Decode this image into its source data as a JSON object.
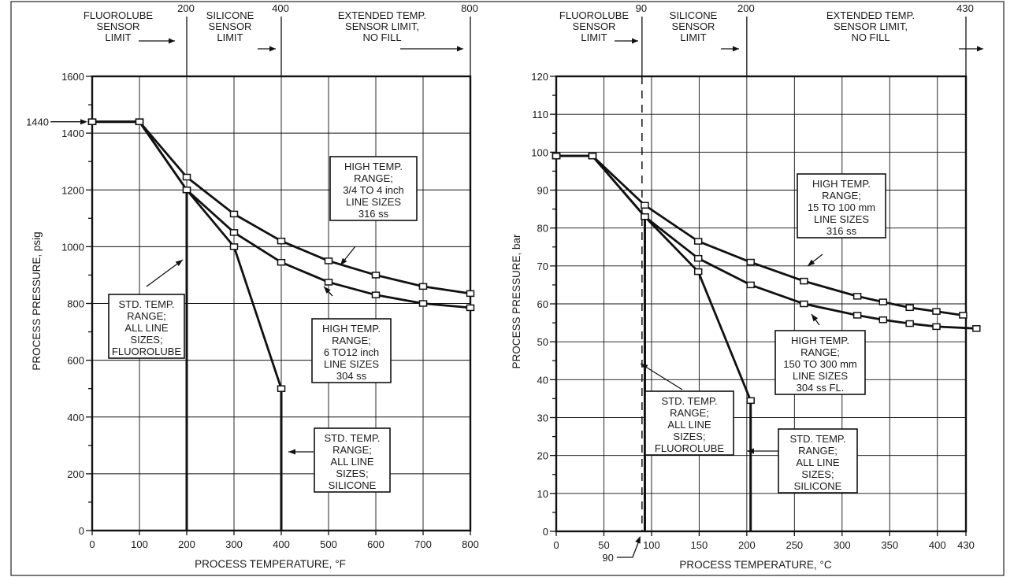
{
  "chart_data": [
    {
      "type": "line",
      "xlabel": "PROCESS TEMPERATURE, °F",
      "ylabel": "PROCESS PRESSURE, psig",
      "xlim": [
        0,
        800
      ],
      "ylim": [
        0,
        1600
      ],
      "x_ticks": [
        "0",
        "100",
        "200",
        "300",
        "400",
        "500",
        "600",
        "700",
        "800"
      ],
      "y_ticks": [
        "0",
        "200",
        "400",
        "600",
        "800",
        "1000",
        "1200",
        "1400",
        "1600"
      ],
      "top_ticks": [
        "200",
        "400",
        "800"
      ],
      "y_callout": "1440",
      "grid": true,
      "zones": [
        {
          "label": [
            "FLUOROLUBE",
            "SENSOR",
            "LIMIT"
          ]
        },
        {
          "label": [
            "SILICONE",
            "SENSOR",
            "LIMIT"
          ]
        },
        {
          "label": [
            "EXTENDED TEMP.",
            "SENSOR LIMIT,",
            "NO FILL"
          ]
        }
      ],
      "series": [
        {
          "x": [
            0,
            100,
            200,
            300,
            400,
            500,
            600,
            700,
            800
          ],
          "y": [
            1440,
            1440,
            1245,
            1115,
            1020,
            950,
            900,
            860,
            835
          ]
        },
        {
          "x": [
            0,
            100,
            200,
            300,
            400,
            500,
            600,
            700,
            800
          ],
          "y": [
            1440,
            1440,
            1200,
            1050,
            945,
            875,
            830,
            800,
            785
          ]
        },
        {
          "x": [
            0,
            100,
            200,
            300,
            400
          ],
          "y": [
            1440,
            1440,
            1200,
            1000,
            500
          ]
        }
      ],
      "drops": [
        {
          "x": 200,
          "y": 1200
        },
        {
          "x": 400,
          "y": 500
        }
      ],
      "annotations": [
        {
          "lines": [
            "HIGH TEMP.",
            "RANGE;",
            "3/4 TO 4 inch",
            "LINE SIZES",
            "316 ss"
          ]
        },
        {
          "lines": [
            "HIGH TEMP.",
            "RANGE;",
            "6 TO12 inch",
            "LINE SIZES",
            "304 ss"
          ]
        },
        {
          "lines": [
            "STD. TEMP.",
            "RANGE;",
            "ALL LINE",
            "SIZES;",
            "FLUOROLUBE"
          ]
        },
        {
          "lines": [
            "STD. TEMP.",
            "RANGE;",
            "ALL LINE",
            "SIZES;",
            "SILICONE"
          ]
        }
      ]
    },
    {
      "type": "line",
      "xlabel": "PROCESS TEMPERATURE, °C",
      "ylabel": "PROCESS PRESSURE, bar",
      "xlim": [
        0,
        430
      ],
      "ylim": [
        0,
        120
      ],
      "x_ticks": [
        "0",
        "50",
        "100",
        "150",
        "200",
        "250",
        "300",
        "350",
        "400",
        "430"
      ],
      "y_ticks": [
        "0",
        "10",
        "20",
        "30",
        "40",
        "50",
        "60",
        "70",
        "80",
        "90",
        "100",
        "110",
        "120"
      ],
      "top_ticks": [
        "90",
        "200",
        "430"
      ],
      "bottom_callout": "90",
      "grid": true,
      "zones": [
        {
          "label": [
            "FLUOROLUBE",
            "SENSOR",
            "LIMIT"
          ]
        },
        {
          "label": [
            "SILICONE",
            "SENSOR",
            "LIMIT"
          ]
        },
        {
          "label": [
            "EXTENDED TEMP.",
            "SENSOR LIMIT,",
            "NO FILL"
          ]
        }
      ],
      "series": [
        {
          "x": [
            0,
            38,
            93,
            149,
            204,
            260,
            316,
            343,
            371,
            399,
            427
          ],
          "y": [
            99,
            99,
            86,
            76.5,
            71,
            66,
            62,
            60.5,
            59,
            58,
            57
          ]
        },
        {
          "x": [
            0,
            38,
            93,
            149,
            204,
            260,
            316,
            343,
            371,
            399,
            441
          ],
          "y": [
            99,
            99,
            83,
            72,
            65,
            60,
            57,
            55.8,
            54.8,
            54,
            53.5
          ]
        },
        {
          "x": [
            0,
            38,
            93,
            149,
            204
          ],
          "y": [
            99,
            99,
            83,
            68.5,
            34.5
          ]
        }
      ],
      "drops": [
        {
          "x": 93,
          "y": 83
        },
        {
          "x": 204,
          "y": 34.5
        }
      ],
      "annotations": [
        {
          "lines": [
            "HIGH TEMP.",
            "RANGE;",
            "15 TO 100 mm",
            "LINE SIZES",
            "316 ss"
          ]
        },
        {
          "lines": [
            "HIGH TEMP.",
            "RANGE;",
            "150 TO 300 mm",
            "LINE SIZES",
            "304 ss FL."
          ]
        },
        {
          "lines": [
            "STD. TEMP.",
            "RANGE;",
            "ALL LINE",
            "SIZES;",
            "FLUOROLUBE"
          ]
        },
        {
          "lines": [
            "STD. TEMP.",
            "RANGE;",
            "ALL LINE",
            "SIZES;",
            "SILICONE"
          ]
        }
      ]
    }
  ]
}
